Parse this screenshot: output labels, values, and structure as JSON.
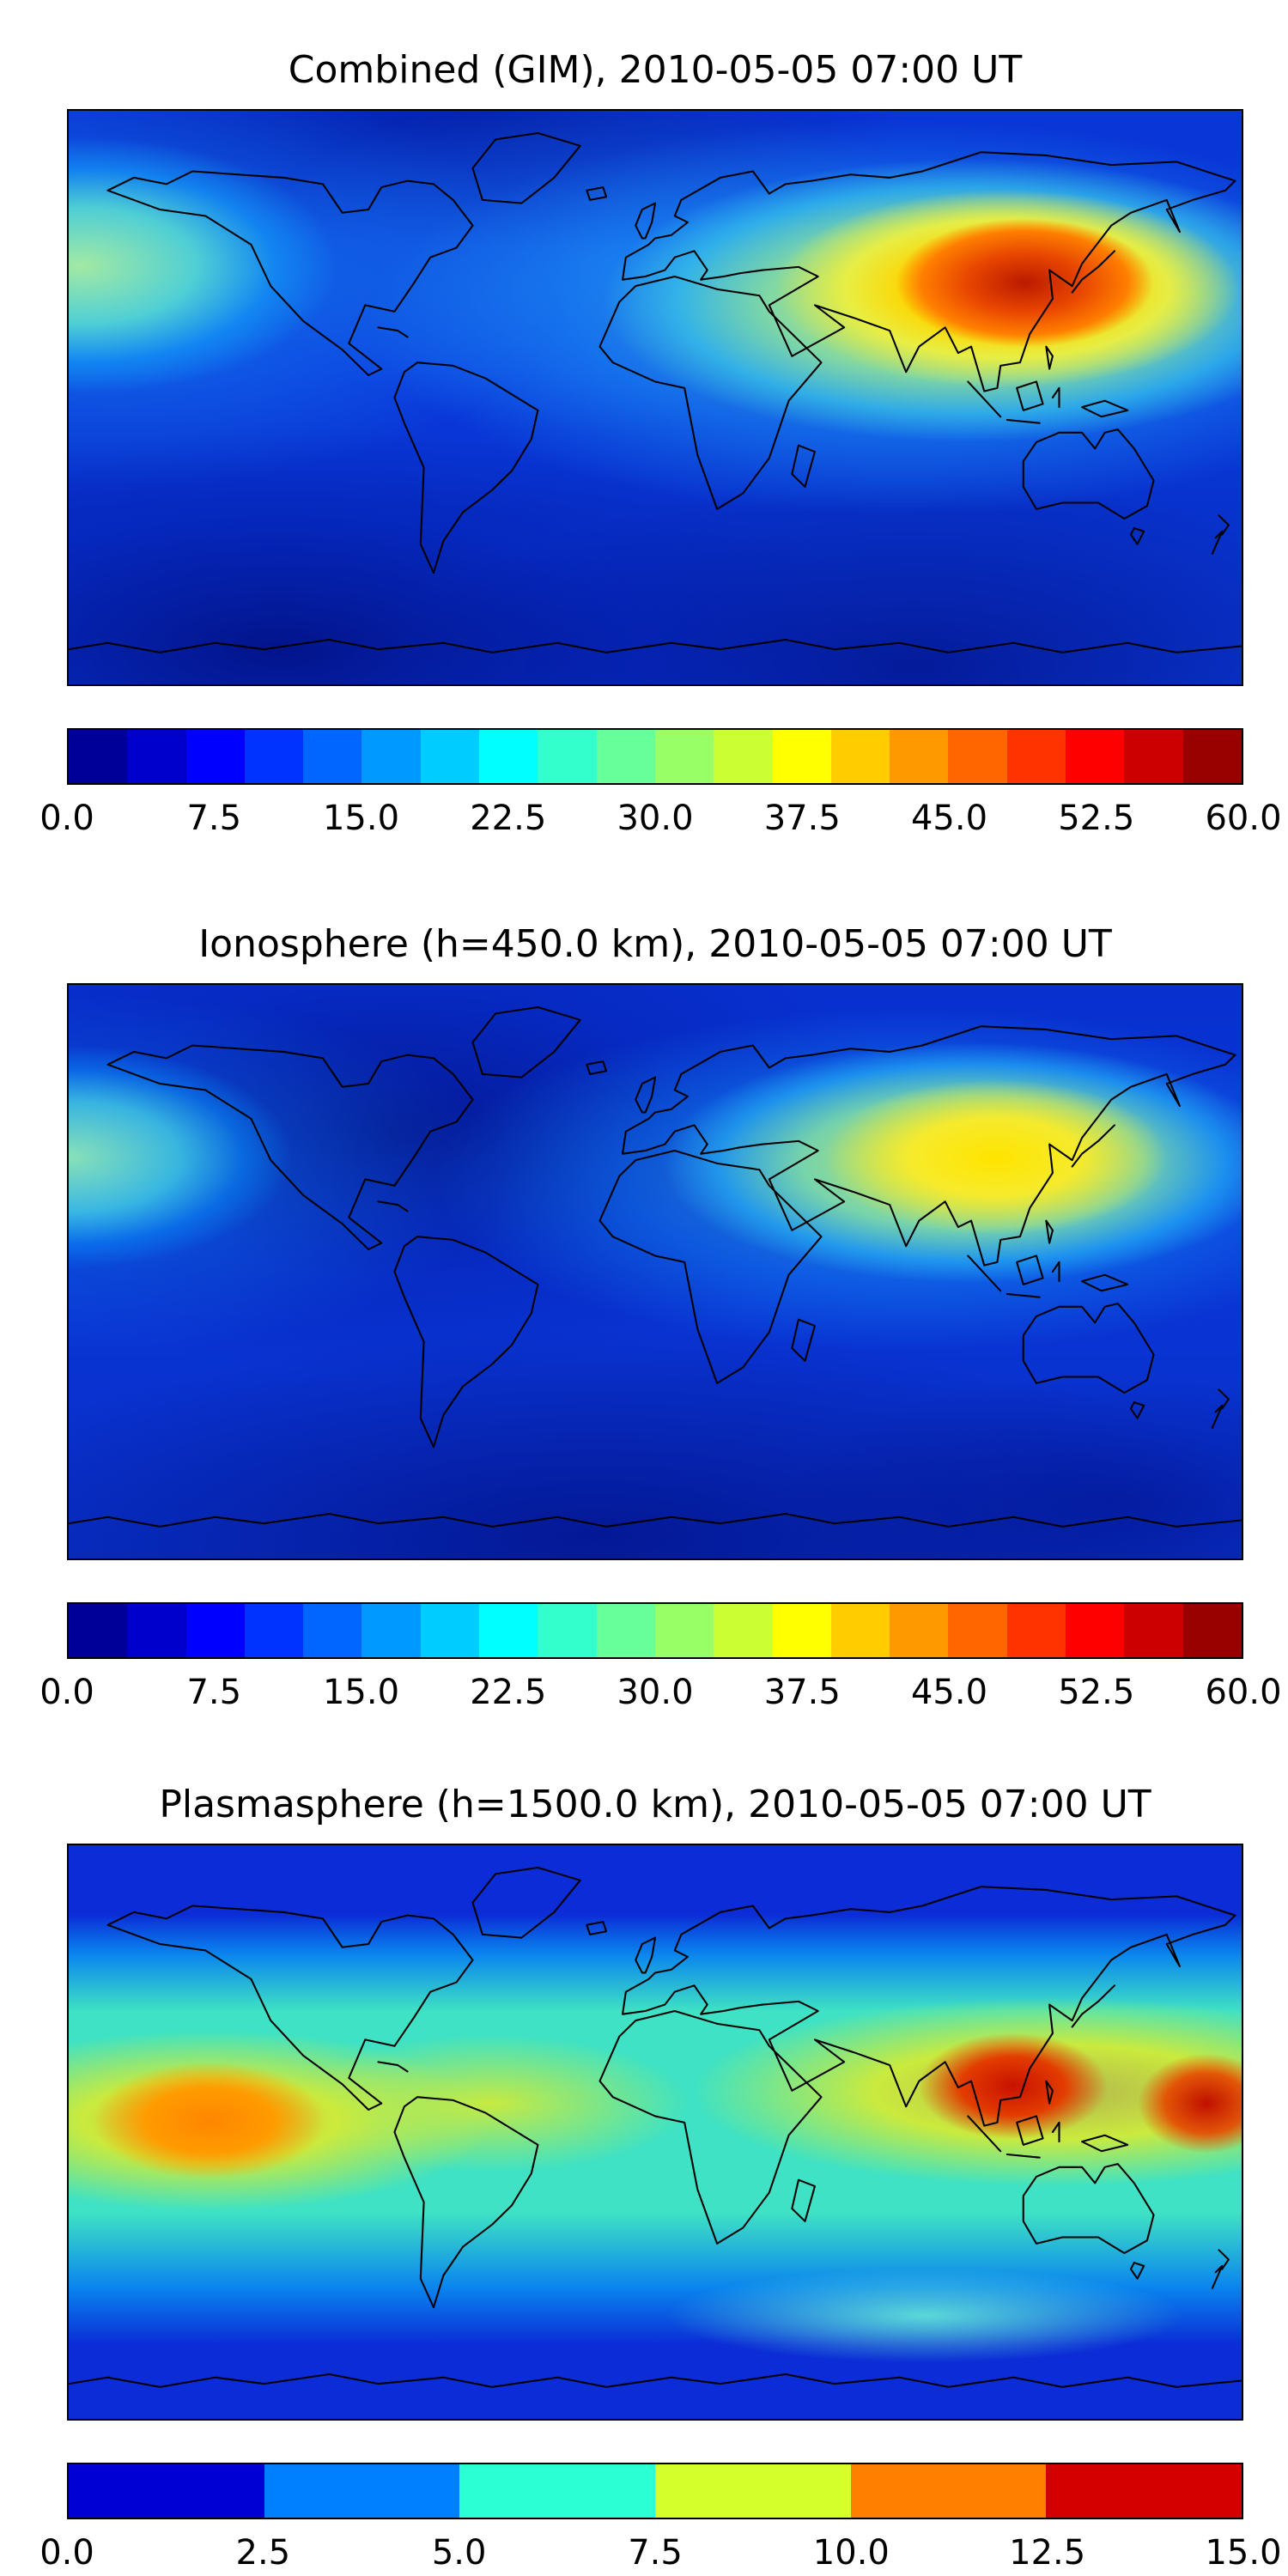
{
  "figure": {
    "background": "#ffffff",
    "panels": [
      {
        "id": "combined",
        "title": "Combined (GIM), 2010-05-05 07:00 UT",
        "colorbar": {
          "vmin": 0.0,
          "vmax": 60.0,
          "tick_labels": [
            "0.0",
            "7.5",
            "15.0",
            "22.5",
            "30.0",
            "37.5",
            "45.0",
            "52.5",
            "60.0"
          ],
          "segment_colors": [
            "#000099",
            "#0000cc",
            "#0000ff",
            "#0033ff",
            "#0066ff",
            "#0099ff",
            "#00ccff",
            "#00ffff",
            "#33ffcc",
            "#66ff99",
            "#99ff66",
            "#ccff33",
            "#ffff00",
            "#ffcc00",
            "#ff9900",
            "#ff6600",
            "#ff3300",
            "#ff0000",
            "#cc0000",
            "#990000"
          ]
        }
      },
      {
        "id": "ionosphere",
        "title": "Ionosphere (h=450.0 km), 2010-05-05 07:00 UT",
        "colorbar": {
          "vmin": 0.0,
          "vmax": 60.0,
          "tick_labels": [
            "0.0",
            "7.5",
            "15.0",
            "22.5",
            "30.0",
            "37.5",
            "45.0",
            "52.5",
            "60.0"
          ],
          "segment_colors": [
            "#000099",
            "#0000cc",
            "#0000ff",
            "#0033ff",
            "#0066ff",
            "#0099ff",
            "#00ccff",
            "#00ffff",
            "#33ffcc",
            "#66ff99",
            "#99ff66",
            "#ccff33",
            "#ffff00",
            "#ffcc00",
            "#ff9900",
            "#ff6600",
            "#ff3300",
            "#ff0000",
            "#cc0000",
            "#990000"
          ]
        }
      },
      {
        "id": "plasmasphere",
        "title": "Plasmasphere (h=1500.0 km), 2010-05-05 07:00 UT",
        "colorbar": {
          "vmin": 0.0,
          "vmax": 15.0,
          "tick_labels": [
            "0.0",
            "2.5",
            "5.0",
            "7.5",
            "10.0",
            "12.5",
            "15.0"
          ],
          "segment_colors": [
            "#0000d5",
            "#0080ff",
            "#2bffd4",
            "#d4ff2b",
            "#ff8000",
            "#d40000"
          ]
        }
      }
    ]
  },
  "chart_data": [
    {
      "type": "heatmap",
      "subtype": "filled-contour-world-map",
      "title": "Combined (GIM), 2010-05-05 07:00 UT",
      "timestamp": "2010-05-05 07:00 UT",
      "projection": "equirectangular",
      "lon_range": [
        -180,
        180
      ],
      "lat_range": [
        -90,
        90
      ],
      "value_range": [
        0,
        60
      ],
      "colormap": "jet",
      "n_levels": 20,
      "level_step": 3.0,
      "colorbar_ticks": [
        0.0,
        7.5,
        15.0,
        22.5,
        30.0,
        37.5,
        45.0,
        52.5,
        60.0
      ],
      "legend_position": "bottom-horizontal-colorbar",
      "grid": false,
      "features": [
        {
          "label": "primary maximum over South/East Asia",
          "lon": 115,
          "lat": 16,
          "value": 57
        },
        {
          "label": "equatorial anomaly band Middle East to W Pacific",
          "lon_span": [
            40,
            180
          ],
          "lat": 18,
          "value": 30
        },
        {
          "label": "secondary enhancement at west map edge (Pacific)",
          "lon": -178,
          "lat": 25,
          "value": 27
        },
        {
          "label": "mid-latitude background",
          "value": 8
        },
        {
          "label": "minimum at southern high latitudes",
          "lat": -75,
          "value": 3
        }
      ]
    },
    {
      "type": "heatmap",
      "subtype": "filled-contour-world-map",
      "title": "Ionosphere (h=450.0 km), 2010-05-05 07:00 UT",
      "timestamp": "2010-05-05 07:00 UT",
      "projection": "equirectangular",
      "lon_range": [
        -180,
        180
      ],
      "lat_range": [
        -90,
        90
      ],
      "value_range": [
        0,
        60
      ],
      "colormap": "jet",
      "n_levels": 20,
      "level_step": 3.0,
      "colorbar_ticks": [
        0.0,
        7.5,
        15.0,
        22.5,
        30.0,
        37.5,
        45.0,
        52.5,
        60.0
      ],
      "legend_position": "bottom-horizontal-colorbar",
      "grid": false,
      "features": [
        {
          "label": "maximum over Southeast Asia / W Pacific",
          "lon": 120,
          "lat": 16,
          "value": 38
        },
        {
          "label": "enhancement at west map edge (Pacific)",
          "lon": -179,
          "lat": 22,
          "value": 24
        },
        {
          "label": "dark minimum over North America / N Atlantic",
          "lon": -80,
          "lat": 45,
          "value": 3
        },
        {
          "label": "mid-latitude background",
          "value": 7
        }
      ]
    },
    {
      "type": "heatmap",
      "subtype": "filled-contour-world-map",
      "title": "Plasmasphere (h=1500.0 km), 2010-05-05 07:00 UT",
      "timestamp": "2010-05-05 07:00 UT",
      "projection": "equirectangular",
      "lon_range": [
        -180,
        180
      ],
      "lat_range": [
        -90,
        90
      ],
      "value_range": [
        0,
        15
      ],
      "colormap": "jet",
      "n_levels": 6,
      "level_step": 2.5,
      "colorbar_ticks": [
        0.0,
        2.5,
        5.0,
        7.5,
        10.0,
        12.5,
        15.0
      ],
      "legend_position": "bottom-horizontal-colorbar",
      "grid": false,
      "features": [
        {
          "label": "red maximum over Southeast Asia",
          "lon": 110,
          "lat": 13,
          "value": 14
        },
        {
          "label": "red maximum near east map edge (W Pacific)",
          "lon": 170,
          "lat": 8,
          "value": 14
        },
        {
          "label": "orange cell in east Pacific",
          "lon": -137,
          "lat": 3,
          "value": 11
        },
        {
          "label": "yellow-green equatorial band",
          "lat_span": [
            -20,
            20
          ],
          "value": 9
        },
        {
          "label": "aquamarine low-latitude band",
          "lat_span": [
            -40,
            40
          ],
          "value": 6
        },
        {
          "label": "azure mid-latitude band",
          "value": 4
        },
        {
          "label": "dark blue high-latitude background",
          "value": 1.5
        }
      ]
    }
  ]
}
